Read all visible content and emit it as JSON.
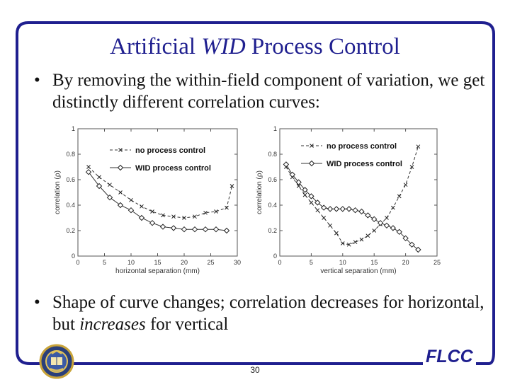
{
  "slide": {
    "title_part1": "Artificial ",
    "title_italic": "WID",
    "title_part2": " Process Control",
    "bullet_symbol": "•",
    "bullet1": "By removing the within-field component of variation, we get distinctly different correlation curves:",
    "bullet2_part1": "Shape of curve changes; correlation decreases for horizontal, but ",
    "bullet2_italic": "increases",
    "bullet2_part2": " for vertical",
    "page_number": "30",
    "logo_text": "FLCC",
    "frame_color": "#1f1f8f",
    "seal": "uc-berkeley-seal-icon"
  },
  "chart_data": [
    {
      "type": "line",
      "xlabel": "horizontal separation (mm)",
      "ylabel": "correlation (ρ)",
      "xlim": [
        0,
        30
      ],
      "ylim": [
        0,
        1
      ],
      "xticks": [
        "0",
        "5",
        "10",
        "15",
        "20",
        "25",
        "30"
      ],
      "yticks": [
        "0",
        "0.2",
        "0.4",
        "0.6",
        "0.8",
        "1"
      ],
      "legend_position": "top-right",
      "grid": false,
      "series": [
        {
          "name": "no process control",
          "marker": "x",
          "x": [
            2,
            4,
            6,
            8,
            10,
            12,
            14,
            16,
            18,
            20,
            22,
            24,
            26,
            28,
            29
          ],
          "values": [
            0.7,
            0.62,
            0.56,
            0.5,
            0.44,
            0.39,
            0.35,
            0.32,
            0.31,
            0.3,
            0.31,
            0.34,
            0.35,
            0.38,
            0.55
          ]
        },
        {
          "name": "WID process control",
          "marker": "diamond",
          "x": [
            2,
            4,
            6,
            8,
            10,
            12,
            14,
            16,
            18,
            20,
            22,
            24,
            26,
            28
          ],
          "values": [
            0.66,
            0.55,
            0.46,
            0.4,
            0.36,
            0.3,
            0.26,
            0.23,
            0.22,
            0.21,
            0.21,
            0.21,
            0.21,
            0.2
          ]
        }
      ]
    },
    {
      "type": "line",
      "xlabel": "vertical separation (mm)",
      "ylabel": "correlation (ρ)",
      "xlim": [
        0,
        25
      ],
      "ylim": [
        0,
        1
      ],
      "xticks": [
        "0",
        "5",
        "10",
        "15",
        "20",
        "25"
      ],
      "yticks": [
        "0",
        "0.2",
        "0.4",
        "0.6",
        "0.8",
        "1"
      ],
      "legend_position": "top-right",
      "grid": false,
      "series": [
        {
          "name": "no process control",
          "marker": "x",
          "x": [
            1,
            2,
            3,
            4,
            5,
            6,
            7,
            8,
            9,
            10,
            11,
            12,
            13,
            14,
            15,
            16,
            17,
            18,
            19,
            20,
            21,
            22
          ],
          "values": [
            0.7,
            0.62,
            0.55,
            0.48,
            0.42,
            0.36,
            0.3,
            0.24,
            0.18,
            0.1,
            0.09,
            0.11,
            0.13,
            0.16,
            0.2,
            0.25,
            0.3,
            0.38,
            0.47,
            0.56,
            0.7,
            0.86
          ]
        },
        {
          "name": "WID process control",
          "marker": "diamond",
          "x": [
            1,
            2,
            3,
            4,
            5,
            6,
            7,
            8,
            9,
            10,
            11,
            12,
            13,
            14,
            15,
            16,
            17,
            18,
            19,
            20,
            21,
            22
          ],
          "values": [
            0.72,
            0.64,
            0.58,
            0.52,
            0.47,
            0.42,
            0.38,
            0.37,
            0.37,
            0.37,
            0.37,
            0.36,
            0.35,
            0.32,
            0.29,
            0.26,
            0.24,
            0.22,
            0.19,
            0.14,
            0.09,
            0.05
          ]
        }
      ]
    }
  ]
}
